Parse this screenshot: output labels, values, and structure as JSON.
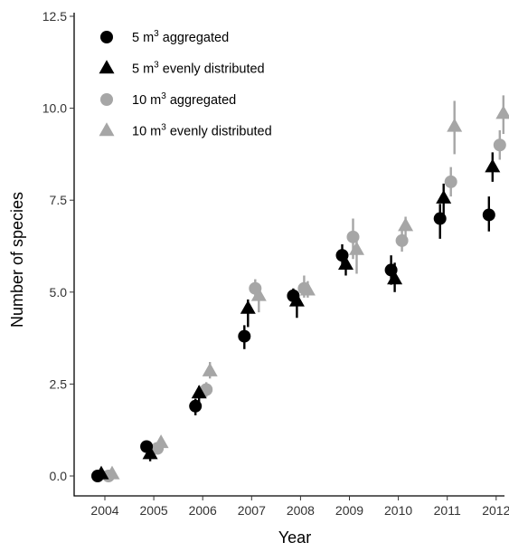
{
  "chart_data": {
    "type": "scatter",
    "xlabel": "Year",
    "ylabel": "Number of species",
    "categories": [
      "2004",
      "2005",
      "2006",
      "2007",
      "2008",
      "2009",
      "2010",
      "2011",
      "2012"
    ],
    "ylim": [
      0,
      12.5
    ],
    "yticks": [
      "0.0",
      "2.5",
      "5.0",
      "7.5",
      "10.0",
      "12.5"
    ],
    "grid": false,
    "legend_position": "top-left",
    "series": [
      {
        "name": "5 m3 aggregated",
        "label_parts": [
          "5 m",
          "3",
          " aggregated"
        ],
        "marker": "circle",
        "color": "#000000",
        "values": [
          0.0,
          0.8,
          1.9,
          3.8,
          4.9,
          6.0,
          5.6,
          7.0,
          7.1
        ],
        "err_low": [
          0.0,
          0.7,
          1.65,
          3.45,
          4.75,
          5.7,
          5.2,
          6.45,
          6.65
        ],
        "err_high": [
          0.05,
          0.9,
          2.1,
          4.1,
          5.1,
          6.3,
          6.0,
          7.4,
          7.6
        ]
      },
      {
        "name": "5 m3 evenly distributed",
        "label_parts": [
          "5 m",
          "3",
          " evenly distributed"
        ],
        "marker": "triangle",
        "color": "#000000",
        "values": [
          0.05,
          0.6,
          2.25,
          4.55,
          4.75,
          5.75,
          5.35,
          7.55,
          8.4
        ],
        "err_low": [
          0.0,
          0.4,
          2.0,
          4.05,
          4.3,
          5.45,
          5.0,
          7.05,
          8.0
        ],
        "err_high": [
          0.1,
          0.75,
          2.45,
          4.8,
          5.0,
          6.05,
          5.8,
          7.95,
          8.8
        ]
      },
      {
        "name": "10 m3 aggregated",
        "label_parts": [
          "10 m",
          "3",
          " aggregated"
        ],
        "marker": "circle",
        "color": "#a6a6a6",
        "values": [
          0.0,
          0.75,
          2.35,
          5.1,
          5.1,
          6.5,
          6.4,
          8.0,
          9.0
        ],
        "err_low": [
          0.0,
          0.65,
          2.15,
          4.85,
          4.85,
          5.9,
          6.1,
          7.6,
          8.6
        ],
        "err_high": [
          0.05,
          0.85,
          2.55,
          5.35,
          5.45,
          7.0,
          6.75,
          8.4,
          9.4
        ]
      },
      {
        "name": "10 m3 evenly distributed",
        "label_parts": [
          "10 m",
          "3",
          " evenly distributed"
        ],
        "marker": "triangle",
        "color": "#a6a6a6",
        "values": [
          0.05,
          0.9,
          2.85,
          4.9,
          5.05,
          6.15,
          6.8,
          9.5,
          9.85
        ],
        "err_low": [
          0.0,
          0.8,
          2.65,
          4.45,
          4.85,
          5.5,
          6.5,
          8.75,
          9.3
        ],
        "err_high": [
          0.1,
          1.0,
          3.1,
          5.2,
          5.3,
          6.6,
          7.05,
          10.2,
          10.35
        ]
      }
    ]
  }
}
